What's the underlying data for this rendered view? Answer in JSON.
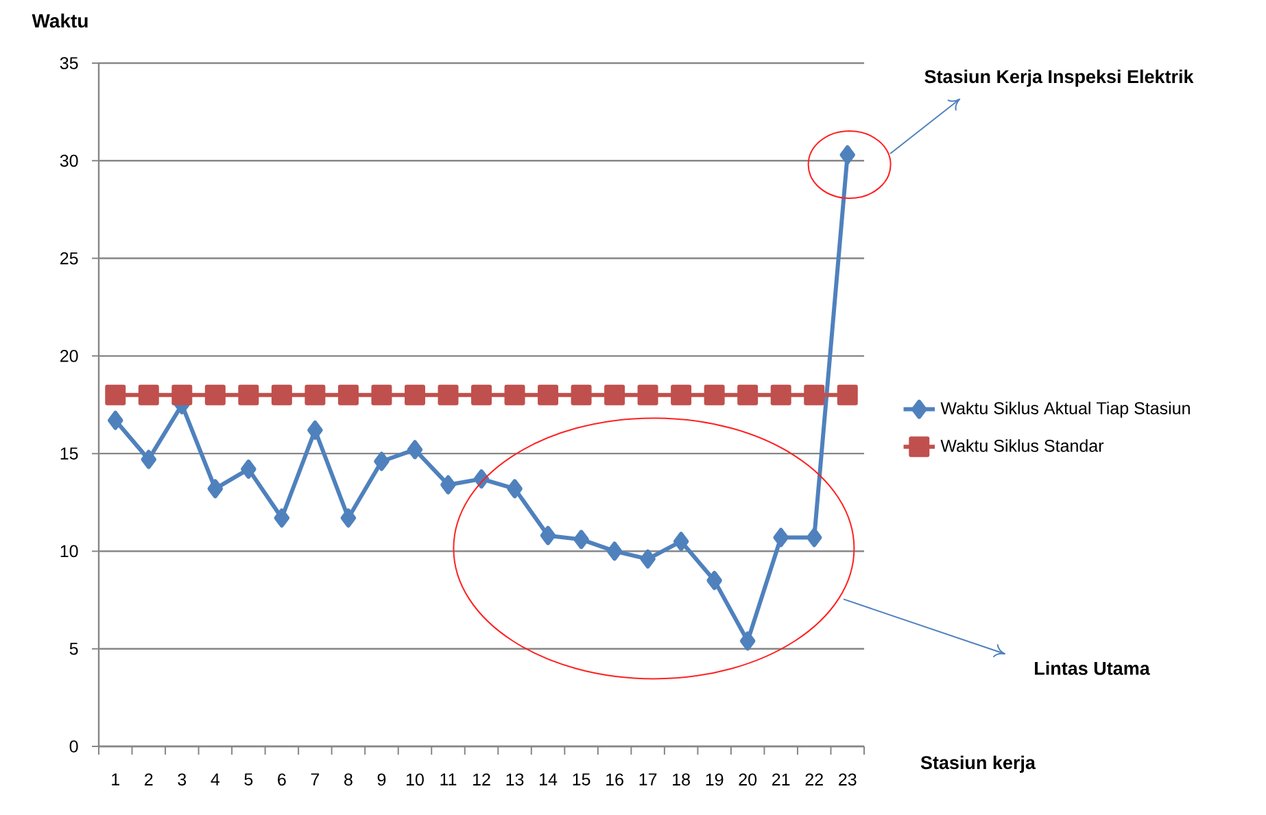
{
  "chart_data": {
    "type": "line",
    "xlabel": "Stasiun kerja",
    "ylabel": "Waktu",
    "categories": [
      "1",
      "2",
      "3",
      "4",
      "5",
      "6",
      "7",
      "8",
      "9",
      "10",
      "11",
      "12",
      "13",
      "14",
      "15",
      "16",
      "17",
      "18",
      "19",
      "20",
      "21",
      "22",
      "23"
    ],
    "series": [
      {
        "name": "Waktu Siklus Aktual Tiap Stasiun",
        "color": "#4f81bd",
        "marker": "diamond",
        "values": [
          16.7,
          14.7,
          17.5,
          13.2,
          14.2,
          11.7,
          16.2,
          11.7,
          14.6,
          15.2,
          13.4,
          13.7,
          13.2,
          10.8,
          10.6,
          10.0,
          9.6,
          10.5,
          8.5,
          5.4,
          10.7,
          10.7,
          30.3
        ]
      },
      {
        "name": "Waktu Siklus Standar",
        "color": "#c0504d",
        "marker": "square",
        "values": [
          18,
          18,
          18,
          18,
          18,
          18,
          18,
          18,
          18,
          18,
          18,
          18,
          18,
          18,
          18,
          18,
          18,
          18,
          18,
          18,
          18,
          18,
          18
        ]
      }
    ],
    "ylim": [
      0,
      35
    ],
    "yticks": [
      0,
      5,
      10,
      15,
      20,
      25,
      30,
      35
    ],
    "grid": "y",
    "legend": "right",
    "line_style": "solid",
    "annotations": [
      "Stasiun Kerja Inspeksi Elektrik",
      "Lintas Utama"
    ]
  }
}
